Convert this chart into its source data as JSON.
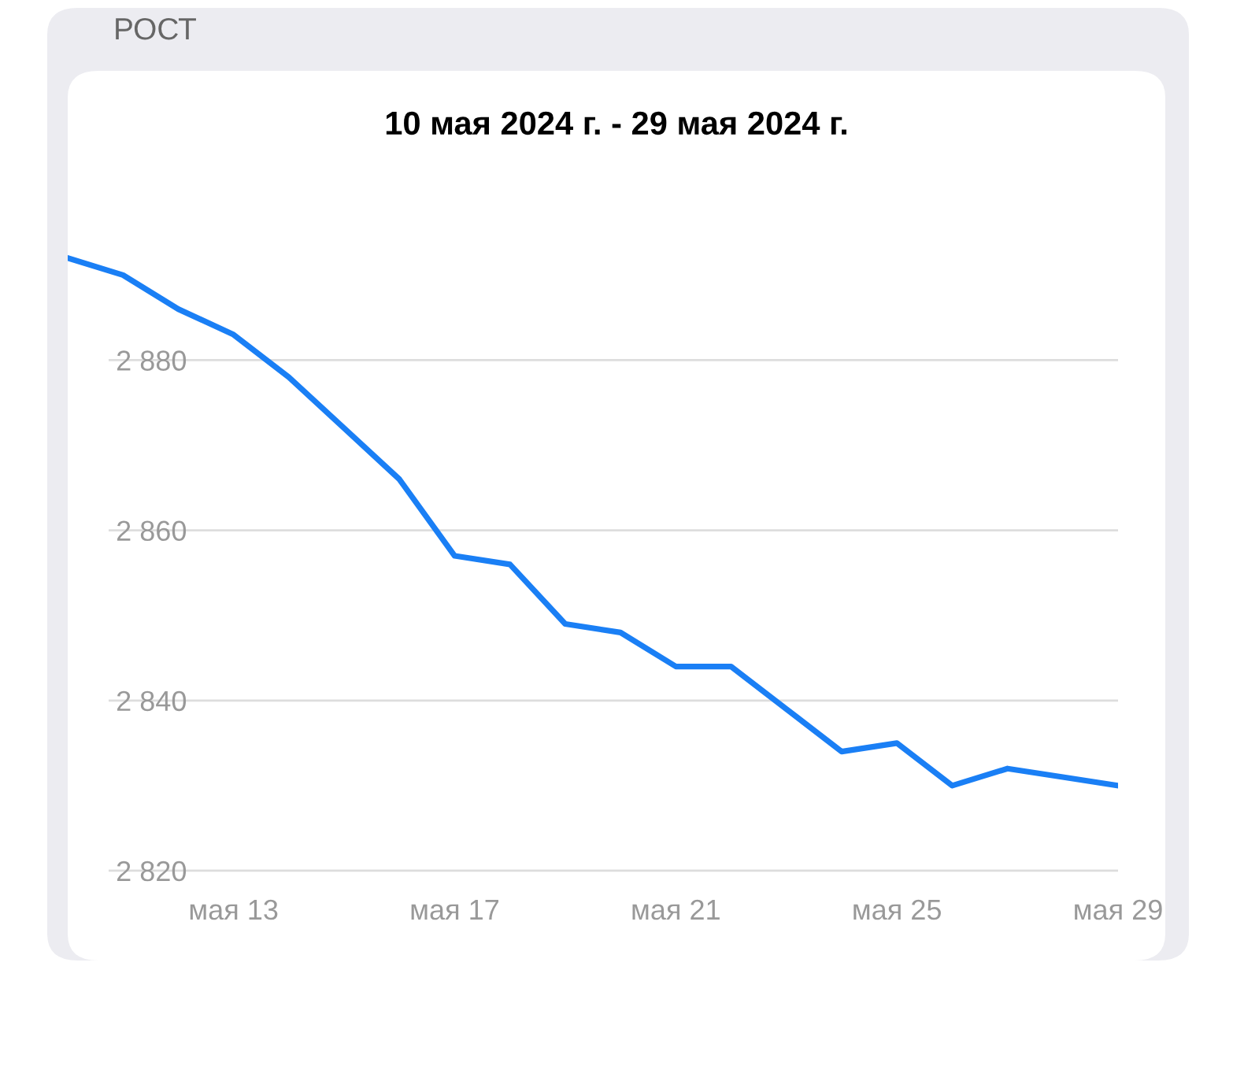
{
  "chart_data": {
    "type": "line",
    "title": "10 мая 2024 г. - 29 мая 2024 г.",
    "annotations": [
      "РОСТ"
    ],
    "x": [
      "2024-05-10",
      "2024-05-11",
      "2024-05-12",
      "2024-05-13",
      "2024-05-14",
      "2024-05-15",
      "2024-05-16",
      "2024-05-17",
      "2024-05-18",
      "2024-05-19",
      "2024-05-20",
      "2024-05-21",
      "2024-05-22",
      "2024-05-23",
      "2024-05-24",
      "2024-05-25",
      "2024-05-26",
      "2024-05-27",
      "2024-05-28",
      "2024-05-29"
    ],
    "series": [
      {
        "color": "#1a7ff5",
        "values": [
          2892,
          2890,
          2886,
          2883,
          2878,
          2872,
          2866,
          2857,
          2856,
          2849,
          2848,
          2844,
          2844,
          2839,
          2834,
          2835,
          2830,
          2832,
          2831,
          2830
        ]
      }
    ],
    "ylim": [
      2810,
      2914
    ],
    "xlim": [
      "2024-05-10",
      "2024-05-29"
    ],
    "yticks": [
      {
        "value": 2820,
        "label": "2 820"
      },
      {
        "value": 2840,
        "label": "2 840"
      },
      {
        "value": 2860,
        "label": "2 860"
      },
      {
        "value": 2880,
        "label": "2 880"
      }
    ],
    "xticks": [
      {
        "value": "2024-05-13",
        "label": "мая 13"
      },
      {
        "value": "2024-05-17",
        "label": "мая 17"
      },
      {
        "value": "2024-05-21",
        "label": "мая 21"
      },
      {
        "value": "2024-05-25",
        "label": "мая 25"
      },
      {
        "value": "2024-05-29",
        "label": "мая 29"
      }
    ],
    "grid": "y",
    "legend": false,
    "marker": "none",
    "line_style": "solid"
  }
}
